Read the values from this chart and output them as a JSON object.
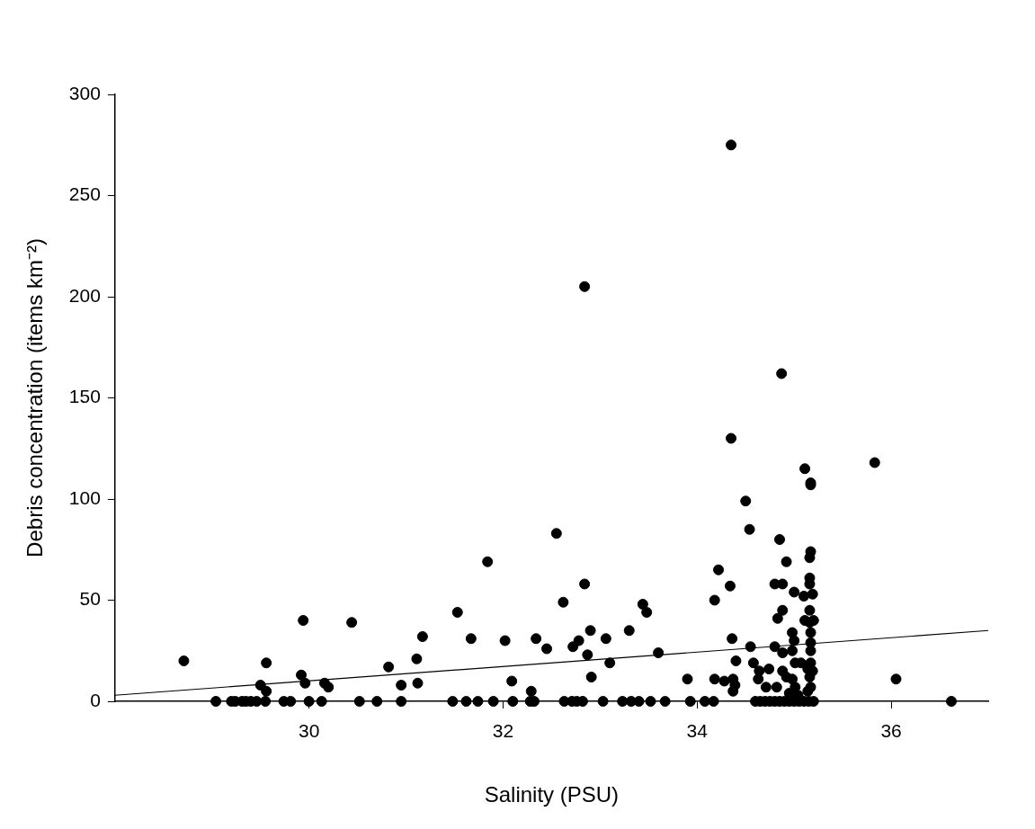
{
  "chart_data": {
    "type": "scatter",
    "xlabel": "Salinity (PSU)",
    "ylabel": "Debris concentration (items km⁻²)",
    "xlim": [
      28,
      37
    ],
    "xticks": [
      30,
      32,
      34,
      36
    ],
    "ylim": [
      0,
      300
    ],
    "yticks": [
      0,
      50,
      100,
      150,
      200,
      250,
      300
    ],
    "grid": false,
    "legend": false,
    "marker": "circle",
    "series": [
      {
        "color": "#000000",
        "x": [
          29.04,
          29.2,
          29.24,
          29.31,
          29.35,
          29.4,
          29.46,
          29.55,
          29.74,
          29.81,
          30.0,
          30.13,
          30.52,
          30.7,
          30.95,
          31.48,
          31.62,
          31.74,
          31.9,
          32.1,
          32.28,
          32.32,
          32.63,
          32.71,
          32.76,
          32.82,
          33.03,
          33.23,
          33.32,
          33.4,
          33.52,
          33.67,
          33.93,
          34.08,
          34.17,
          34.6,
          34.65,
          34.7,
          34.75,
          34.8,
          34.85,
          34.9,
          34.95,
          35.0,
          35.05,
          35.1,
          35.15,
          35.2,
          36.62,
          28.71,
          29.94,
          30.44,
          31.53,
          32.62,
          31.17,
          31.67,
          32.02,
          32.34,
          32.45,
          31.11,
          30.82,
          29.56,
          29.92,
          29.5,
          29.56,
          29.96,
          30.16,
          30.2,
          30.95,
          31.12,
          32.09,
          32.29,
          32.84,
          34.34,
          34.8,
          34.88,
          35.16,
          35.0,
          34.18,
          33.44,
          33.48,
          35.1,
          35.19,
          35.16,
          34.88,
          34.83,
          35.11,
          35.2,
          32.72,
          32.78,
          32.9,
          33.06,
          33.3,
          32.87,
          33.1,
          32.91,
          33.6,
          33.9,
          34.36,
          34.55,
          34.8,
          34.98,
          35.0,
          34.98,
          35.17,
          35.17,
          35.17,
          35.16,
          34.4,
          34.58,
          34.88,
          35.01,
          35.07,
          35.17,
          34.18,
          34.28,
          34.37,
          34.39,
          34.37,
          34.64,
          34.74,
          34.63,
          34.71,
          34.82,
          34.88,
          34.92,
          34.98,
          35.01,
          34.95,
          35.04,
          35.14,
          35.19,
          35.16,
          35.17,
          35.14,
          36.05,
          34.35,
          34.87,
          34.35,
          35.83,
          35.11,
          35.17,
          35.17,
          34.5,
          34.54,
          34.85,
          35.17,
          35.16,
          34.92,
          34.22,
          35.16,
          32.84,
          31.84,
          32.55
        ],
        "values": [
          0,
          0,
          0,
          0,
          0,
          0,
          0,
          0,
          0,
          0,
          0,
          0,
          0,
          0,
          0,
          0,
          0,
          0,
          0,
          0,
          0,
          0,
          0,
          0,
          0,
          0,
          0,
          0,
          0,
          0,
          0,
          0,
          0,
          0,
          0,
          0,
          0,
          0,
          0,
          0,
          0,
          0,
          0,
          0,
          0,
          0,
          0,
          0,
          0,
          20,
          40,
          39,
          44,
          49,
          32,
          31,
          30,
          31,
          26,
          21,
          17,
          19,
          13,
          8,
          5,
          9,
          9,
          7,
          8,
          9,
          10,
          5,
          58,
          57,
          58,
          58,
          58,
          54,
          50,
          48,
          44,
          52,
          53,
          45,
          45,
          41,
          40,
          40,
          27,
          30,
          35,
          31,
          35,
          23,
          19,
          12,
          24,
          11,
          31,
          27,
          27,
          34,
          30,
          25,
          34,
          29,
          25,
          39,
          20,
          19,
          24,
          19,
          19,
          19,
          11,
          10,
          11,
          8,
          5,
          15,
          16,
          11,
          7,
          7,
          15,
          12,
          11,
          7,
          4,
          3,
          16,
          15,
          12,
          7,
          5,
          11,
          275,
          162,
          130,
          118,
          115,
          108,
          107,
          99,
          85,
          80,
          74,
          71,
          69,
          65,
          61,
          205,
          69,
          83
        ]
      },
      {
        "type": "line",
        "color": "#000000",
        "marker": "none",
        "x": [
          28,
          37
        ],
        "values": [
          3,
          35
        ]
      }
    ]
  }
}
